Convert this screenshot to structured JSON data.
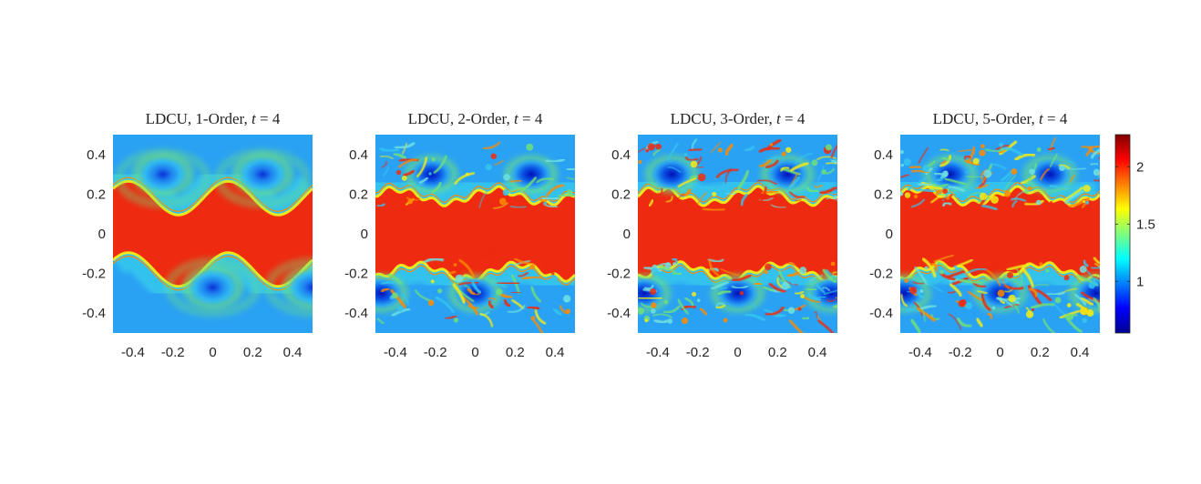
{
  "chart_data": [
    {
      "type": "heatmap",
      "title": "LDCU, 1-Order, t = 4",
      "title_parts": {
        "prefix": "LDCU, 1-Order, ",
        "var": "t",
        "suffix": " = 4"
      },
      "order": 1,
      "xlim": [
        -0.5,
        0.5
      ],
      "ylim": [
        -0.5,
        0.5
      ],
      "xticks": [
        -0.4,
        -0.2,
        0,
        0.2,
        0.4
      ],
      "yticks": [
        -0.4,
        -0.2,
        0,
        0.2,
        0.4
      ],
      "xtick_labels": [
        "-0.4",
        "-0.2",
        "0",
        "0.2",
        "0.4"
      ],
      "ytick_labels": [
        "0.4",
        "0.2",
        "0",
        "-0.2",
        "-0.4"
      ],
      "vortex_x_top": [
        -0.25,
        0.25
      ],
      "vortex_x_bottom": [
        0.0,
        0.5
      ]
    },
    {
      "type": "heatmap",
      "title": "LDCU, 2-Order, t = 4",
      "title_parts": {
        "prefix": "LDCU, 2-Order, ",
        "var": "t",
        "suffix": " = 4"
      },
      "order": 2,
      "xlim": [
        -0.5,
        0.5
      ],
      "ylim": [
        -0.5,
        0.5
      ],
      "xticks": [
        -0.4,
        -0.2,
        0,
        0.2,
        0.4
      ],
      "yticks": [
        -0.4,
        -0.2,
        0,
        0.2,
        0.4
      ],
      "xtick_labels": [
        "-0.4",
        "-0.2",
        "0",
        "0.2",
        "0.4"
      ],
      "ytick_labels": [
        "0.4",
        "0.2",
        "0",
        "-0.2",
        "-0.4"
      ],
      "vortex_x_top": [
        -0.22,
        0.28
      ],
      "vortex_x_bottom": [
        0.0,
        -0.47
      ]
    },
    {
      "type": "heatmap",
      "title": "LDCU, 3-Order, t = 4",
      "title_parts": {
        "prefix": "LDCU, 3-Order, ",
        "var": "t",
        "suffix": " = 4"
      },
      "order": 3,
      "xlim": [
        -0.5,
        0.5
      ],
      "ylim": [
        -0.5,
        0.5
      ],
      "xticks": [
        -0.4,
        -0.2,
        0,
        0.2,
        0.4
      ],
      "yticks": [
        -0.4,
        -0.2,
        0,
        0.2,
        0.4
      ],
      "xtick_labels": [
        "-0.4",
        "-0.2",
        "0",
        "0.2",
        "0.4"
      ],
      "ytick_labels": [
        "0.4",
        "0.2",
        "0",
        "-0.2",
        "-0.4"
      ],
      "vortex_x_top": [
        -0.33,
        0.25
      ],
      "vortex_x_bottom": [
        0.0,
        -0.47,
        0.47
      ]
    },
    {
      "type": "heatmap",
      "title": "LDCU, 5-Order, t = 4",
      "title_parts": {
        "prefix": "LDCU, 5-Order, ",
        "var": "t",
        "suffix": " = 4"
      },
      "order": 5,
      "xlim": [
        -0.5,
        0.5
      ],
      "ylim": [
        -0.5,
        0.5
      ],
      "xticks": [
        -0.4,
        -0.2,
        0,
        0.2,
        0.4
      ],
      "yticks": [
        -0.4,
        -0.2,
        0,
        0.2,
        0.4
      ],
      "xtick_labels": [
        "-0.4",
        "-0.2",
        "0",
        "0.2",
        "0.4"
      ],
      "ytick_labels": [
        "0.4",
        "0.2",
        "0",
        "-0.2",
        "-0.4"
      ],
      "vortex_x_top": [
        -0.25,
        0.25
      ],
      "vortex_x_bottom": [
        0.0,
        -0.48,
        0.48
      ]
    }
  ],
  "colorbar": {
    "colormap": "jet",
    "range": [
      0.55,
      2.28
    ],
    "ticks": [
      1,
      1.5,
      2
    ],
    "tick_labels": [
      "1",
      "1.5",
      "2"
    ]
  }
}
